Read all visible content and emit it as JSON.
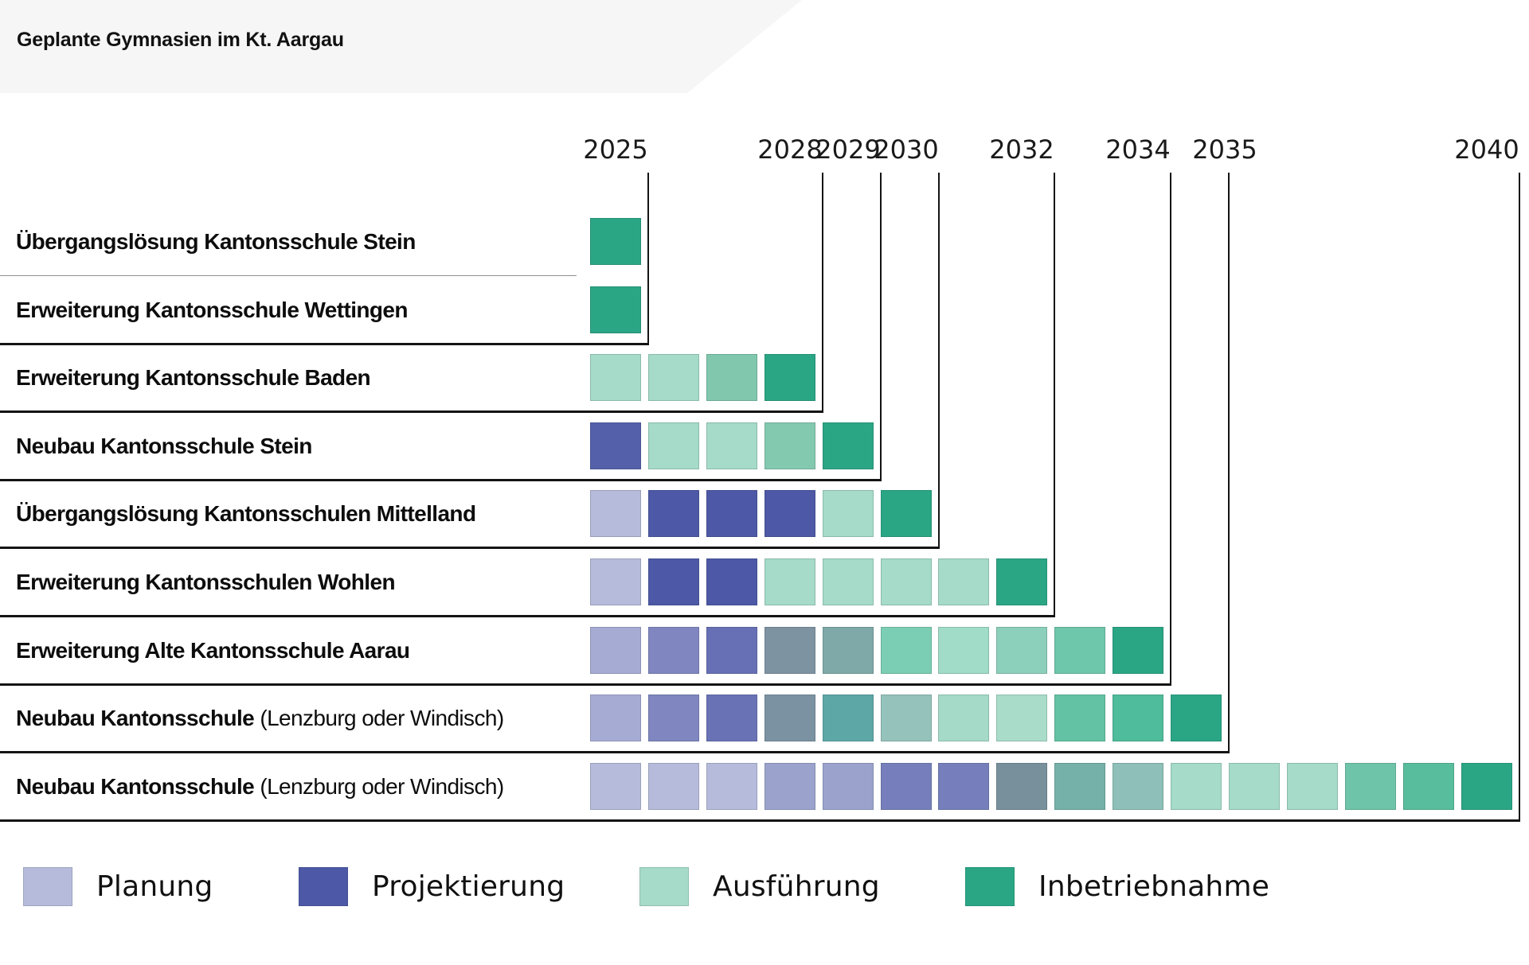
{
  "header": {
    "title": "Geplante Gymnasien im Kt. Aargau"
  },
  "legend": {
    "items": [
      {
        "id": "planung",
        "label": "Planung",
        "color": "#b6bbdb"
      },
      {
        "id": "projektierung",
        "label": "Projektierung",
        "color": "#4d58a6"
      },
      {
        "id": "ausfuehrung",
        "label": "Ausführung",
        "color": "#a5dbc8"
      },
      {
        "id": "inbetriebnahme",
        "label": "Inbetriebnahme",
        "color": "#2aa685"
      }
    ]
  },
  "chart_data": {
    "type": "gantt",
    "title": "Geplante Gymnasien im Kt. Aargau",
    "x_axis": {
      "start_year": 2025,
      "end_year": 2040,
      "tick_labels": [
        "2025",
        "2028",
        "2029",
        "2030",
        "2032",
        "2034",
        "2035",
        "2040"
      ]
    },
    "legend_position": "bottom",
    "grid": "stepped-black-borders",
    "phase_colors": {
      "Planung": "#b6bbdb",
      "Projektierung": "#4d58a6",
      "Ausführung": "#a5dbc8",
      "Inbetriebnahme": "#2aa685"
    },
    "rows": [
      {
        "label_bold": "Übergangslösung Kantonsschule Stein",
        "label_normal": "",
        "start_year": 2025,
        "end_year": 2025,
        "separator": "thin",
        "cells": [
          {
            "year": 2025,
            "color": "#2aa685",
            "phase": "Inbetriebnahme"
          }
        ]
      },
      {
        "label_bold": "Erweiterung Kantonsschule Wettingen",
        "label_normal": "",
        "start_year": 2025,
        "end_year": 2025,
        "separator": "thick",
        "cells": [
          {
            "year": 2025,
            "color": "#2aa685",
            "phase": "Inbetriebnahme"
          }
        ]
      },
      {
        "label_bold": "Erweiterung Kantonsschule Baden",
        "label_normal": "",
        "start_year": 2025,
        "end_year": 2028,
        "separator": "thick",
        "cells": [
          {
            "year": 2025,
            "color": "#a5dbc8",
            "phase": "Ausführung"
          },
          {
            "year": 2026,
            "color": "#a5dbc8",
            "phase": "Ausführung"
          },
          {
            "year": 2027,
            "color": "#80c7ae",
            "phase": "Ausführung/Inbetriebnahme"
          },
          {
            "year": 2028,
            "color": "#2aa685",
            "phase": "Inbetriebnahme"
          }
        ]
      },
      {
        "label_bold": "Neubau Kantonsschule Stein",
        "label_normal": "",
        "start_year": 2025,
        "end_year": 2029,
        "separator": "thick",
        "cells": [
          {
            "year": 2025,
            "color": "#5560aa",
            "phase": "Projektierung"
          },
          {
            "year": 2026,
            "color": "#a5dbc8",
            "phase": "Ausführung"
          },
          {
            "year": 2027,
            "color": "#a5dbc8",
            "phase": "Ausführung"
          },
          {
            "year": 2028,
            "color": "#83c9b0",
            "phase": "Ausführung/Inbetriebnahme"
          },
          {
            "year": 2029,
            "color": "#2aa685",
            "phase": "Inbetriebnahme"
          }
        ]
      },
      {
        "label_bold": "Übergangslösung Kantonsschulen Mittelland",
        "label_normal": "",
        "start_year": 2025,
        "end_year": 2030,
        "separator": "thick",
        "cells": [
          {
            "year": 2025,
            "color": "#b6bbdb",
            "phase": "Planung"
          },
          {
            "year": 2026,
            "color": "#4d58a6",
            "phase": "Projektierung"
          },
          {
            "year": 2027,
            "color": "#4d58a6",
            "phase": "Projektierung"
          },
          {
            "year": 2028,
            "color": "#4d58a6",
            "phase": "Projektierung"
          },
          {
            "year": 2029,
            "color": "#a5dbc8",
            "phase": "Ausführung"
          },
          {
            "year": 2030,
            "color": "#2aa685",
            "phase": "Inbetriebnahme"
          }
        ]
      },
      {
        "label_bold": "Erweiterung Kantonsschulen Wohlen",
        "label_normal": "",
        "start_year": 2025,
        "end_year": 2032,
        "separator": "thick",
        "cells": [
          {
            "year": 2025,
            "color": "#b6bbdb",
            "phase": "Planung"
          },
          {
            "year": 2026,
            "color": "#4d58a6",
            "phase": "Projektierung"
          },
          {
            "year": 2027,
            "color": "#4d58a6",
            "phase": "Projektierung"
          },
          {
            "year": 2028,
            "color": "#a5dbc8",
            "phase": "Ausführung"
          },
          {
            "year": 2029,
            "color": "#a5dbc8",
            "phase": "Ausführung"
          },
          {
            "year": 2030,
            "color": "#a5dbc8",
            "phase": "Ausführung"
          },
          {
            "year": 2031,
            "color": "#a5dbc8",
            "phase": "Ausführung"
          },
          {
            "year": 2032,
            "color": "#2aa685",
            "phase": "Inbetriebnahme"
          }
        ]
      },
      {
        "label_bold": "Erweiterung Alte Kantonsschule Aarau",
        "label_normal": "",
        "start_year": 2025,
        "end_year": 2034,
        "separator": "thick",
        "cells": [
          {
            "year": 2025,
            "color": "#a6abd4",
            "phase": "Planung"
          },
          {
            "year": 2026,
            "color": "#7f86c0",
            "phase": "Planung/Projektierung"
          },
          {
            "year": 2027,
            "color": "#6770b5",
            "phase": "Projektierung"
          },
          {
            "year": 2028,
            "color": "#7e93a1",
            "phase": "Projektierung/Ausführung"
          },
          {
            "year": 2029,
            "color": "#7fa8a8",
            "phase": "Projektierung/Ausführung"
          },
          {
            "year": 2030,
            "color": "#7bceb3",
            "phase": "Ausführung"
          },
          {
            "year": 2031,
            "color": "#a0dcc8",
            "phase": "Ausführung"
          },
          {
            "year": 2032,
            "color": "#8ccfba",
            "phase": "Ausführung"
          },
          {
            "year": 2033,
            "color": "#6ec6ab",
            "phase": "Ausführung/Inbetriebnahme"
          },
          {
            "year": 2034,
            "color": "#2aa685",
            "phase": "Inbetriebnahme"
          }
        ]
      },
      {
        "label_bold": "Neubau Kantonsschule",
        "label_normal": " (Lenzburg oder Windisch)",
        "start_year": 2025,
        "end_year": 2035,
        "separator": "thick",
        "cells": [
          {
            "year": 2025,
            "color": "#a6abd4",
            "phase": "Planung"
          },
          {
            "year": 2026,
            "color": "#7f86c0",
            "phase": "Planung/Projektierung"
          },
          {
            "year": 2027,
            "color": "#6a72b6",
            "phase": "Projektierung"
          },
          {
            "year": 2028,
            "color": "#7b92a2",
            "phase": "Projektierung/Ausführung"
          },
          {
            "year": 2029,
            "color": "#5da7a6",
            "phase": "Projektierung/Ausführung"
          },
          {
            "year": 2030,
            "color": "#95c3bb",
            "phase": "Ausführung"
          },
          {
            "year": 2031,
            "color": "#a4dac7",
            "phase": "Ausführung"
          },
          {
            "year": 2032,
            "color": "#a9ddca",
            "phase": "Ausführung"
          },
          {
            "year": 2033,
            "color": "#63c2a4",
            "phase": "Ausführung/Inbetriebnahme"
          },
          {
            "year": 2034,
            "color": "#4fbc9b",
            "phase": "Ausführung/Inbetriebnahme"
          },
          {
            "year": 2035,
            "color": "#2aa685",
            "phase": "Inbetriebnahme"
          }
        ]
      },
      {
        "label_bold": "Neubau Kantonsschule",
        "label_normal": " (Lenzburg oder Windisch)",
        "start_year": 2025,
        "end_year": 2040,
        "separator": "thick",
        "cells": [
          {
            "year": 2025,
            "color": "#b6bbdb",
            "phase": "Planung"
          },
          {
            "year": 2026,
            "color": "#b6bbdb",
            "phase": "Planung"
          },
          {
            "year": 2027,
            "color": "#b6bbdb",
            "phase": "Planung"
          },
          {
            "year": 2028,
            "color": "#9ba3cd",
            "phase": "Planung/Projektierung"
          },
          {
            "year": 2029,
            "color": "#9ba3cd",
            "phase": "Planung/Projektierung"
          },
          {
            "year": 2030,
            "color": "#767fbc",
            "phase": "Projektierung"
          },
          {
            "year": 2031,
            "color": "#767fbc",
            "phase": "Projektierung"
          },
          {
            "year": 2032,
            "color": "#78909c",
            "phase": "Projektierung/Ausführung"
          },
          {
            "year": 2033,
            "color": "#75b1a9",
            "phase": "Projektierung/Ausführung"
          },
          {
            "year": 2034,
            "color": "#8ec0b9",
            "phase": "Ausführung"
          },
          {
            "year": 2035,
            "color": "#a5dbc8",
            "phase": "Ausführung"
          },
          {
            "year": 2036,
            "color": "#a5dbc8",
            "phase": "Ausführung"
          },
          {
            "year": 2037,
            "color": "#a5dbc8",
            "phase": "Ausführung"
          },
          {
            "year": 2038,
            "color": "#6ec4a8",
            "phase": "Ausführung/Inbetriebnahme"
          },
          {
            "year": 2039,
            "color": "#58bd9c",
            "phase": "Ausführung/Inbetriebnahme"
          },
          {
            "year": 2040,
            "color": "#2aa685",
            "phase": "Inbetriebnahme"
          }
        ]
      }
    ]
  }
}
